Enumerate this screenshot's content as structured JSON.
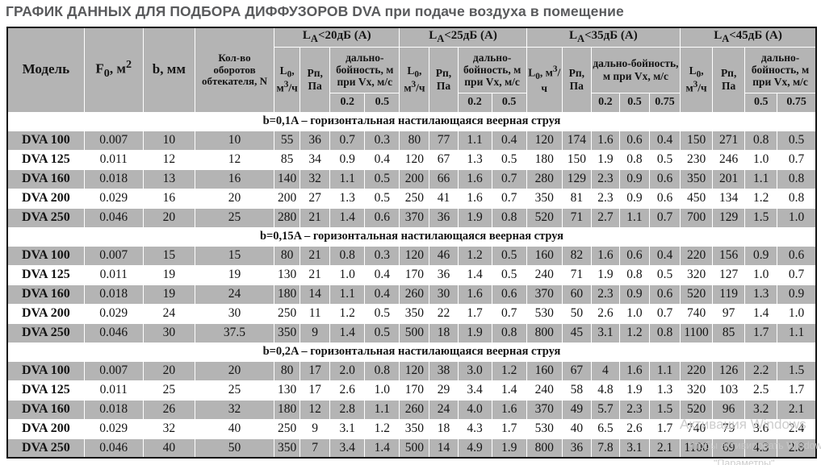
{
  "title": "ГРАФИК ДАННЫХ ДЛЯ ПОДБОРА ДИФФУЗОРОВ DVA при подаче воздуха в помещение",
  "table": {
    "fixed_headers": [
      "Модель",
      "F~0~, м^2^",
      "b, мм",
      "Кол-во оборотов обтекателя, N"
    ],
    "groups": [
      {
        "label": "L~A~<20дБ (А)",
        "flow_label": "L~0~, м^3^/ч",
        "pressure_label": "Рп, Па",
        "range_label": "дально-бойность, м при Vx, м/с",
        "velocities": [
          "0.2",
          "0.5"
        ]
      },
      {
        "label": "L~A~<25дБ (А)",
        "flow_label": "L~0~, м^3^/ч",
        "pressure_label": "Рп, Па",
        "range_label": "дально-бойность, м при Vx, м/с",
        "velocities": [
          "0.2",
          "0.5"
        ]
      },
      {
        "label": "L~A~<35дБ (А)",
        "flow_label": "L~0~, м^3^/ч",
        "pressure_label": "Рп, Па",
        "range_label": "дально-бойность, м при Vx, м/с",
        "velocities": [
          "0.2",
          "0.5",
          "0.75"
        ]
      },
      {
        "label": "L~A~<45дБ (А)",
        "flow_label": "L~0~, м^3^/ч",
        "pressure_label": "Рп, Па",
        "range_label": "дально-бойность, м при Vx, м/с",
        "velocities": [
          "0.5",
          "0.75"
        ]
      }
    ],
    "sections": [
      {
        "title": "b=0,1A  – горизонтальная настилающаяся веерная струя",
        "rows": [
          {
            "model": "DVA 100",
            "values": [
              "0.007",
              "10",
              "10",
              "55",
              "36",
              "0.7",
              "0.3",
              "80",
              "77",
              "1.1",
              "0.4",
              "120",
              "174",
              "1.6",
              "0.6",
              "0.4",
              "150",
              "271",
              "0.8",
              "0.5"
            ]
          },
          {
            "model": "DVA 125",
            "values": [
              "0.011",
              "12",
              "12",
              "85",
              "34",
              "0.9",
              "0.4",
              "120",
              "67",
              "1.3",
              "0.5",
              "180",
              "150",
              "1.9",
              "0.8",
              "0.5",
              "230",
              "246",
              "1.0",
              "0.7"
            ]
          },
          {
            "model": "DVA 160",
            "values": [
              "0.018",
              "13",
              "16",
              "140",
              "32",
              "1.1",
              "0.5",
              "200",
              "66",
              "1.6",
              "0.7",
              "280",
              "129",
              "2.3",
              "0.9",
              "0.6",
              "350",
              "201",
              "1.1",
              "0.8"
            ]
          },
          {
            "model": "DVA 200",
            "values": [
              "0.029",
              "16",
              "20",
              "200",
              "27",
              "1.3",
              "0.5",
              "250",
              "41",
              "1.6",
              "0.7",
              "350",
              "81",
              "2.3",
              "0.9",
              "0.6",
              "450",
              "134",
              "1.2",
              "0.8"
            ]
          },
          {
            "model": "DVA 250",
            "values": [
              "0.046",
              "20",
              "25",
              "280",
              "21",
              "1.4",
              "0.6",
              "370",
              "36",
              "1.9",
              "0.8",
              "520",
              "71",
              "2.7",
              "1.1",
              "0.7",
              "700",
              "129",
              "1.5",
              "1.0"
            ]
          }
        ]
      },
      {
        "title": "b=0,15A  – горизонтальная настилающаяся веерная струя",
        "rows": [
          {
            "model": "DVA 100",
            "values": [
              "0.007",
              "15",
              "15",
              "80",
              "21",
              "0.8",
              "0.3",
              "120",
              "46",
              "1.2",
              "0.5",
              "160",
              "82",
              "1.6",
              "0.6",
              "0.4",
              "220",
              "156",
              "0.9",
              "0.6"
            ]
          },
          {
            "model": "DVA 125",
            "values": [
              "0.011",
              "19",
              "19",
              "130",
              "21",
              "1.0",
              "0.4",
              "170",
              "36",
              "1.4",
              "0.5",
              "240",
              "71",
              "1.9",
              "0.8",
              "0.5",
              "320",
              "127",
              "1.0",
              "0.7"
            ]
          },
          {
            "model": "DVA 160",
            "values": [
              "0.018",
              "19",
              "24",
              "180",
              "14",
              "1.1",
              "0.4",
              "260",
              "30",
              "1.6",
              "0.6",
              "370",
              "60",
              "2.3",
              "0.9",
              "0.6",
              "520",
              "119",
              "1.3",
              "0.9"
            ]
          },
          {
            "model": "DVA 200",
            "values": [
              "0.029",
              "24",
              "30",
              "250",
              "11",
              "1.2",
              "0.5",
              "350",
              "22",
              "1.7",
              "0.7",
              "530",
              "50",
              "2.6",
              "1.0",
              "0.7",
              "740",
              "97",
              "1.4",
              "1.0"
            ]
          },
          {
            "model": "DVA 250",
            "values": [
              "0.046",
              "30",
              "37.5",
              "350",
              "9",
              "1.4",
              "0.5",
              "500",
              "18",
              "1.9",
              "0.8",
              "800",
              "45",
              "3.1",
              "1.2",
              "0.8",
              "1100",
              "85",
              "1.7",
              "1.1"
            ]
          }
        ]
      },
      {
        "title": "b=0,2A  – горизонтальная настилающаяся веерная струя",
        "rows": [
          {
            "model": "DVA 100",
            "values": [
              "0.007",
              "20",
              "20",
              "80",
              "17",
              "2.0",
              "0.8",
              "120",
              "38",
              "3.0",
              "1.2",
              "160",
              "67",
              "4",
              "1.6",
              "1.1",
              "220",
              "126",
              "2.2",
              "1.5"
            ]
          },
          {
            "model": "DVA 125",
            "values": [
              "0.011",
              "25",
              "25",
              "130",
              "17",
              "2.6",
              "1.0",
              "170",
              "29",
              "3.4",
              "1.4",
              "240",
              "58",
              "4.8",
              "1.9",
              "1.3",
              "320",
              "103",
              "2.5",
              "1.7"
            ]
          },
          {
            "model": "DVA 160",
            "values": [
              "0.018",
              "26",
              "32",
              "180",
              "12",
              "2.8",
              "1.1",
              "260",
              "24",
              "4.0",
              "1.6",
              "370",
              "49",
              "5.7",
              "2.3",
              "1.5",
              "520",
              "96",
              "3.2",
              "2.1"
            ]
          },
          {
            "model": "DVA 200",
            "values": [
              "0.029",
              "32",
              "40",
              "250",
              "9",
              "3.1",
              "1.2",
              "350",
              "18",
              "4.3",
              "1.7",
              "530",
              "40",
              "6.5",
              "2.6",
              "1.7",
              "740",
              "79",
              "3.6",
              "2.4"
            ]
          },
          {
            "model": "DVA 250",
            "values": [
              "0.046",
              "40",
              "50",
              "350",
              "7",
              "3.4",
              "1.4",
              "500",
              "14",
              "4.9",
              "1.9",
              "800",
              "36",
              "7.8",
              "3.1",
              "2.1",
              "1100",
              "69",
              "4.3",
              "2.8"
            ]
          }
        ]
      }
    ]
  },
  "watermark": {
    "line1": "Активация Windows",
    "line2": "Чтобы активировать Windows, перейдите в раздел",
    "line3": "\"Параметры\"."
  },
  "colors": {
    "row_gray": "#b4b4b4",
    "title_gray": "#595a5c",
    "border_black": "#141414"
  }
}
